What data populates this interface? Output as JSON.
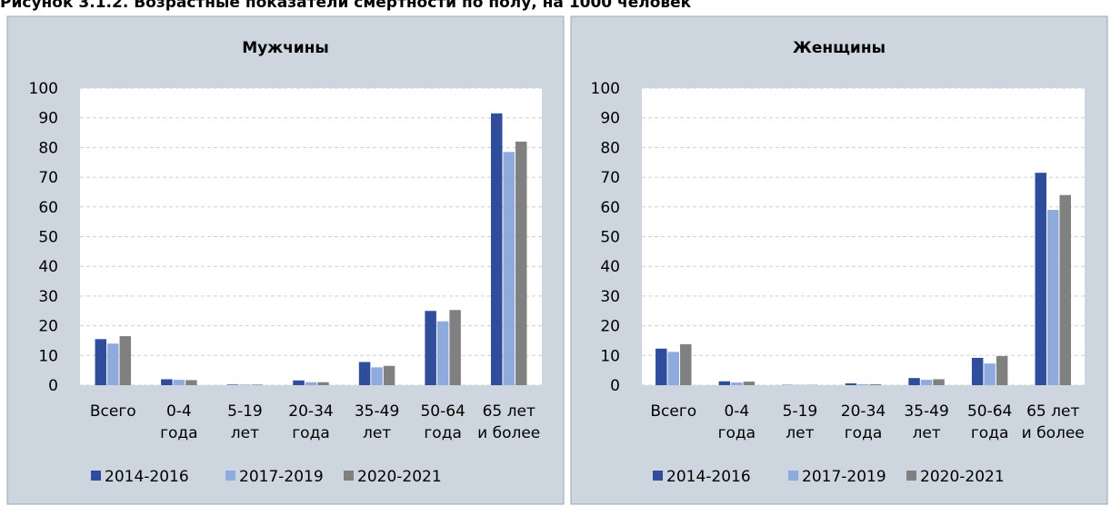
{
  "figure_title": "Рисунок 3.1.2. Возрастные показатели смертности по полу, на 1000 человек",
  "chart_data": [
    {
      "type": "bar",
      "title": "Мужчины",
      "categories": [
        [
          "Всего"
        ],
        [
          "0-4",
          "года"
        ],
        [
          "5-19",
          "лет"
        ],
        [
          "20-34",
          "года"
        ],
        [
          "35-49",
          "лет"
        ],
        [
          "50-64",
          "года"
        ],
        [
          "65 лет",
          "и более"
        ]
      ],
      "series": [
        {
          "name": "2014-2016",
          "color": "#2f4d9a",
          "values": [
            15.5,
            2,
            0.2,
            1.6,
            7.8,
            25,
            91.5
          ]
        },
        {
          "name": "2017-2019",
          "color": "#8faadc",
          "values": [
            14,
            1.8,
            0.2,
            1,
            6,
            21.5,
            78.5
          ]
        },
        {
          "name": "2020-2021",
          "color": "#808080",
          "values": [
            16.5,
            1.7,
            0.2,
            1,
            6.5,
            25.3,
            82
          ]
        }
      ],
      "ylim": [
        0,
        100
      ],
      "yticks": [
        0,
        10,
        20,
        30,
        40,
        50,
        60,
        70,
        80,
        90,
        100
      ],
      "grid": true,
      "legend": "bottom"
    },
    {
      "type": "bar",
      "title": "Женщины",
      "categories": [
        [
          "Всего"
        ],
        [
          "0-4",
          "года"
        ],
        [
          "5-19",
          "лет"
        ],
        [
          "20-34",
          "года"
        ],
        [
          "35-49",
          "лет"
        ],
        [
          "50-64",
          "года"
        ],
        [
          "65 лет",
          "и более"
        ]
      ],
      "series": [
        {
          "name": "2014-2016",
          "color": "#2f4d9a",
          "values": [
            12.3,
            1.3,
            0.1,
            0.6,
            2.4,
            9.2,
            71.5
          ]
        },
        {
          "name": "2017-2019",
          "color": "#8faadc",
          "values": [
            11.2,
            0.9,
            0.1,
            0.3,
            1.8,
            7.3,
            59
          ]
        },
        {
          "name": "2020-2021",
          "color": "#808080",
          "values": [
            13.8,
            1.2,
            0.1,
            0.3,
            2,
            9.8,
            64
          ]
        }
      ],
      "ylim": [
        0,
        100
      ],
      "yticks": [
        0,
        10,
        20,
        30,
        40,
        50,
        60,
        70,
        80,
        90,
        100
      ],
      "grid": true,
      "legend": "bottom"
    }
  ]
}
